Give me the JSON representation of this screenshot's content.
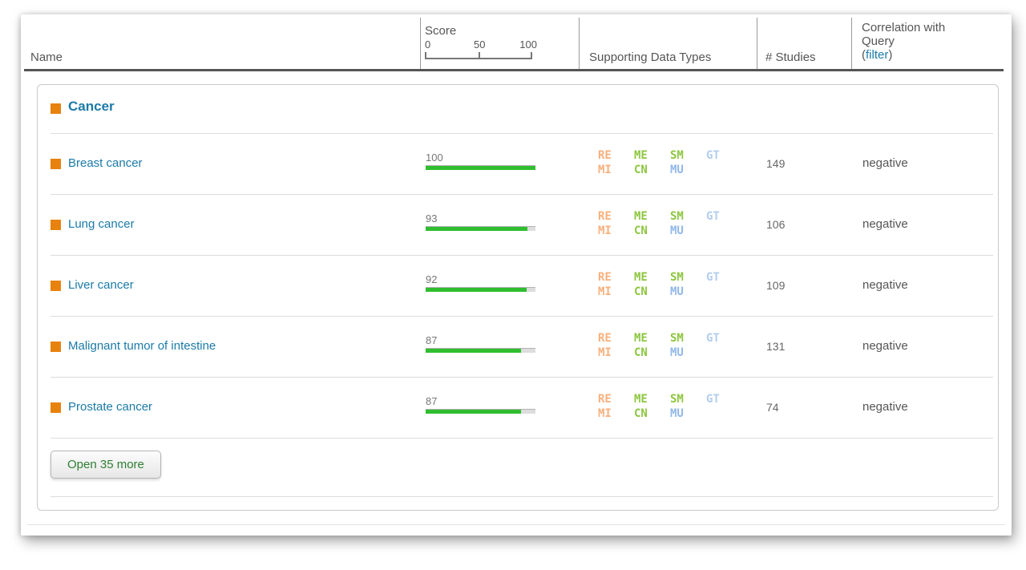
{
  "header": {
    "name_label": "Name",
    "score_label": "Score",
    "score_ticks": [
      "0",
      "50",
      "100"
    ],
    "data_types_label": "Supporting Data Types",
    "studies_label": "# Studies",
    "correlation_line1": "Correlation with",
    "correlation_line2": "Query",
    "correlation_filter_open": "(",
    "correlation_filter_link": "filter",
    "correlation_filter_close": ")"
  },
  "group": {
    "label": "Cancer"
  },
  "rows": [
    {
      "name": "Breast cancer",
      "score": 100,
      "studies": "149",
      "correlation": "negative",
      "badges": [
        "RE",
        "ME",
        "SM",
        "GT",
        "MI",
        "CN",
        "MU"
      ]
    },
    {
      "name": "Lung cancer",
      "score": 93,
      "studies": "106",
      "correlation": "negative",
      "badges": [
        "RE",
        "ME",
        "SM",
        "GT",
        "MI",
        "CN",
        "MU"
      ]
    },
    {
      "name": "Liver cancer",
      "score": 92,
      "studies": "109",
      "correlation": "negative",
      "badges": [
        "RE",
        "ME",
        "SM",
        "GT",
        "MI",
        "CN",
        "MU"
      ]
    },
    {
      "name": "Malignant tumor of intestine",
      "score": 87,
      "studies": "131",
      "correlation": "negative",
      "badges": [
        "RE",
        "ME",
        "SM",
        "GT",
        "MI",
        "CN",
        "MU"
      ]
    },
    {
      "name": "Prostate cancer",
      "score": 87,
      "studies": "74",
      "correlation": "negative",
      "badges": [
        "RE",
        "ME",
        "SM",
        "GT",
        "MI",
        "CN",
        "MU"
      ]
    }
  ],
  "badge_colors": {
    "RE": "#f8b07c",
    "MI": "#f8b07c",
    "ME": "#8dc63f",
    "CN": "#8dc63f",
    "SM": "#8dc63f",
    "GT": "#b2cdee",
    "MU": "#92b8e8"
  },
  "footer": {
    "open_more_label": "Open 35 more"
  },
  "colors": {
    "accent_orange": "#e8820e",
    "link_teal": "#1b7aa8",
    "bar_green": "#2fbe2f",
    "bar_track": "#dddddd",
    "header_text": "#555555",
    "filter_link_blue": "#1b7aa8"
  }
}
